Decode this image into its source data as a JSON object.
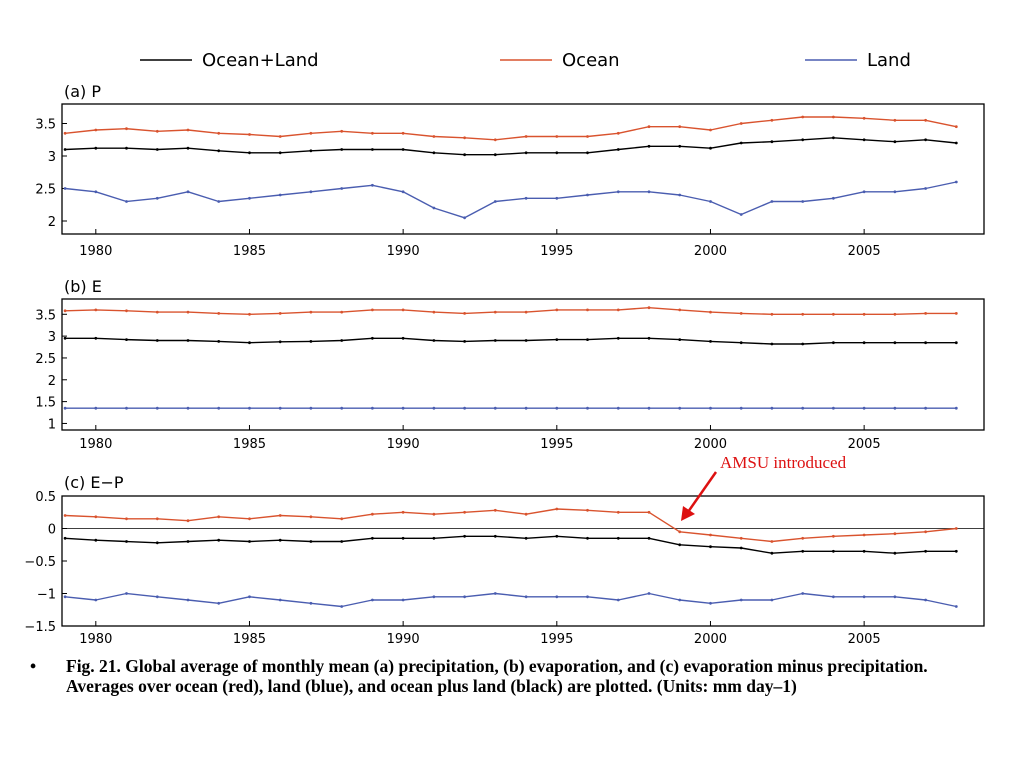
{
  "legend": [
    {
      "label": "Ocean+Land",
      "color": "#000000"
    },
    {
      "label": "Ocean",
      "color": "#d9532e"
    },
    {
      "label": "Land",
      "color": "#4a5db0"
    }
  ],
  "annotation": {
    "text": "AMSU introduced",
    "color": "#dd1111"
  },
  "caption": {
    "bullet": "•",
    "text": "Fig. 21. Global average of monthly mean (a) precipitation, (b) evaporation, and (c) evaporation minus precipitation. Averages over ocean (red), land (blue), and ocean plus land (black) are plotted. (Units: mm day–1)"
  },
  "chart_data": [
    {
      "type": "line",
      "title": "(a) P",
      "xlim": [
        1978.9,
        2008.9
      ],
      "ylim": [
        1.8,
        3.8
      ],
      "xticks": [
        1980,
        1985,
        1990,
        1995,
        2000,
        2005
      ],
      "yticks": [
        2,
        2.5,
        3,
        3.5
      ],
      "x": [
        1979,
        1980,
        1981,
        1982,
        1983,
        1984,
        1985,
        1986,
        1987,
        1988,
        1989,
        1990,
        1991,
        1992,
        1993,
        1994,
        1995,
        1996,
        1997,
        1998,
        1999,
        2000,
        2001,
        2002,
        2003,
        2004,
        2005,
        2006,
        2007,
        2008
      ],
      "series": [
        {
          "name": "Ocean",
          "color": "#d9532e",
          "values": [
            3.35,
            3.4,
            3.42,
            3.38,
            3.4,
            3.35,
            3.33,
            3.3,
            3.35,
            3.38,
            3.35,
            3.35,
            3.3,
            3.28,
            3.25,
            3.3,
            3.3,
            3.3,
            3.35,
            3.45,
            3.45,
            3.4,
            3.5,
            3.55,
            3.6,
            3.6,
            3.58,
            3.55,
            3.55,
            3.45
          ]
        },
        {
          "name": "Ocean+Land",
          "color": "#000000",
          "values": [
            3.1,
            3.12,
            3.12,
            3.1,
            3.12,
            3.08,
            3.05,
            3.05,
            3.08,
            3.1,
            3.1,
            3.1,
            3.05,
            3.02,
            3.02,
            3.05,
            3.05,
            3.05,
            3.1,
            3.15,
            3.15,
            3.12,
            3.2,
            3.22,
            3.25,
            3.28,
            3.25,
            3.22,
            3.25,
            3.2
          ]
        },
        {
          "name": "Land",
          "color": "#4a5db0",
          "values": [
            2.5,
            2.45,
            2.3,
            2.35,
            2.45,
            2.3,
            2.35,
            2.4,
            2.45,
            2.5,
            2.55,
            2.45,
            2.2,
            2.05,
            2.3,
            2.35,
            2.35,
            2.4,
            2.45,
            2.45,
            2.4,
            2.3,
            2.1,
            2.3,
            2.3,
            2.35,
            2.45,
            2.45,
            2.5,
            2.6
          ]
        }
      ]
    },
    {
      "type": "line",
      "title": "(b) E",
      "xlim": [
        1978.9,
        2008.9
      ],
      "ylim": [
        0.85,
        3.85
      ],
      "xticks": [
        1980,
        1985,
        1990,
        1995,
        2000,
        2005
      ],
      "yticks": [
        1,
        1.5,
        2,
        2.5,
        3,
        3.5
      ],
      "x": [
        1979,
        1980,
        1981,
        1982,
        1983,
        1984,
        1985,
        1986,
        1987,
        1988,
        1989,
        1990,
        1991,
        1992,
        1993,
        1994,
        1995,
        1996,
        1997,
        1998,
        1999,
        2000,
        2001,
        2002,
        2003,
        2004,
        2005,
        2006,
        2007,
        2008
      ],
      "series": [
        {
          "name": "Ocean",
          "color": "#d9532e",
          "values": [
            3.58,
            3.6,
            3.58,
            3.55,
            3.55,
            3.52,
            3.5,
            3.52,
            3.55,
            3.55,
            3.6,
            3.6,
            3.55,
            3.52,
            3.55,
            3.55,
            3.6,
            3.6,
            3.6,
            3.65,
            3.6,
            3.55,
            3.52,
            3.5,
            3.5,
            3.5,
            3.5,
            3.5,
            3.52,
            3.52
          ]
        },
        {
          "name": "Ocean+Land",
          "color": "#000000",
          "values": [
            2.95,
            2.95,
            2.92,
            2.9,
            2.9,
            2.88,
            2.85,
            2.87,
            2.88,
            2.9,
            2.95,
            2.95,
            2.9,
            2.88,
            2.9,
            2.9,
            2.92,
            2.92,
            2.95,
            2.95,
            2.92,
            2.88,
            2.85,
            2.82,
            2.82,
            2.85,
            2.85,
            2.85,
            2.85,
            2.85
          ]
        },
        {
          "name": "Land",
          "color": "#4a5db0",
          "values": [
            1.35,
            1.35,
            1.35,
            1.35,
            1.35,
            1.35,
            1.35,
            1.35,
            1.35,
            1.35,
            1.35,
            1.35,
            1.35,
            1.35,
            1.35,
            1.35,
            1.35,
            1.35,
            1.35,
            1.35,
            1.35,
            1.35,
            1.35,
            1.35,
            1.35,
            1.35,
            1.35,
            1.35,
            1.35,
            1.35
          ]
        }
      ]
    },
    {
      "type": "line",
      "title": "(c) E−P",
      "xlim": [
        1978.9,
        2008.9
      ],
      "ylim": [
        -1.5,
        0.5
      ],
      "xticks": [
        1980,
        1985,
        1990,
        1995,
        2000,
        2005
      ],
      "yticks": [
        -1.5,
        -1,
        -0.5,
        0,
        0.5
      ],
      "x": [
        1979,
        1980,
        1981,
        1982,
        1983,
        1984,
        1985,
        1986,
        1987,
        1988,
        1989,
        1990,
        1991,
        1992,
        1993,
        1994,
        1995,
        1996,
        1997,
        1998,
        1999,
        2000,
        2001,
        2002,
        2003,
        2004,
        2005,
        2006,
        2007,
        2008
      ],
      "series": [
        {
          "name": "Ocean",
          "color": "#d9532e",
          "values": [
            0.2,
            0.18,
            0.15,
            0.15,
            0.12,
            0.18,
            0.15,
            0.2,
            0.18,
            0.15,
            0.22,
            0.25,
            0.22,
            0.25,
            0.28,
            0.22,
            0.3,
            0.28,
            0.25,
            0.25,
            -0.05,
            -0.1,
            -0.15,
            -0.2,
            -0.15,
            -0.12,
            -0.1,
            -0.08,
            -0.05,
            0.0
          ]
        },
        {
          "name": "Ocean+Land",
          "color": "#000000",
          "values": [
            -0.15,
            -0.18,
            -0.2,
            -0.22,
            -0.2,
            -0.18,
            -0.2,
            -0.18,
            -0.2,
            -0.2,
            -0.15,
            -0.15,
            -0.15,
            -0.12,
            -0.12,
            -0.15,
            -0.12,
            -0.15,
            -0.15,
            -0.15,
            -0.25,
            -0.28,
            -0.3,
            -0.38,
            -0.35,
            -0.35,
            -0.35,
            -0.38,
            -0.35,
            -0.35
          ]
        },
        {
          "name": "Land",
          "color": "#4a5db0",
          "values": [
            -1.05,
            -1.1,
            -1.0,
            -1.05,
            -1.1,
            -1.15,
            -1.05,
            -1.1,
            -1.15,
            -1.2,
            -1.1,
            -1.1,
            -1.05,
            -1.05,
            -1.0,
            -1.05,
            -1.05,
            -1.05,
            -1.1,
            -1.0,
            -1.1,
            -1.15,
            -1.1,
            -1.1,
            -1.0,
            -1.05,
            -1.05,
            -1.05,
            -1.1,
            -1.2
          ]
        }
      ]
    }
  ]
}
